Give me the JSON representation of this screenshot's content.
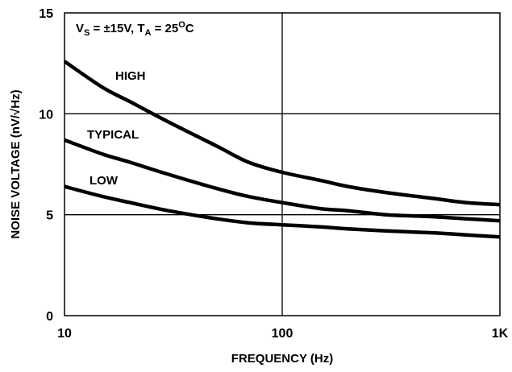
{
  "chart_data": {
    "type": "line",
    "xlabel": "FREQUENCY (Hz)",
    "ylabel": "NOISE VOLTAGE (nV/√Hz)",
    "x_scale": "log",
    "xlim": [
      10,
      1000
    ],
    "ylim": [
      0,
      15
    ],
    "x_ticks": [
      10,
      100,
      1000
    ],
    "x_tick_labels": [
      "10",
      "100",
      "1K"
    ],
    "y_ticks": [
      0,
      5,
      10,
      15
    ],
    "y_tick_labels": [
      "0",
      "5",
      "10",
      "15"
    ],
    "grid": true,
    "annotation": {
      "v_main": "V",
      "v_sub": "S",
      "v_rest": " = ±15V, T",
      "t_sub": "A",
      "t_rest": " = 25",
      "deg": "O",
      "unit": "C"
    },
    "series": [
      {
        "name": "HIGH",
        "x": [
          10,
          15,
          20,
          30,
          50,
          70,
          100,
          150,
          200,
          300,
          500,
          700,
          1000
        ],
        "y": [
          12.6,
          11.3,
          10.6,
          9.6,
          8.4,
          7.6,
          7.1,
          6.7,
          6.4,
          6.1,
          5.8,
          5.6,
          5.5
        ]
      },
      {
        "name": "TYPICAL",
        "x": [
          10,
          15,
          20,
          30,
          50,
          70,
          100,
          150,
          200,
          300,
          500,
          700,
          1000
        ],
        "y": [
          8.7,
          8.0,
          7.6,
          7.0,
          6.3,
          5.9,
          5.6,
          5.3,
          5.2,
          5.0,
          4.9,
          4.8,
          4.7
        ]
      },
      {
        "name": "LOW",
        "x": [
          10,
          15,
          20,
          30,
          50,
          70,
          100,
          150,
          200,
          300,
          500,
          700,
          1000
        ],
        "y": [
          6.4,
          5.9,
          5.6,
          5.2,
          4.8,
          4.6,
          4.5,
          4.4,
          4.3,
          4.2,
          4.1,
          4.0,
          3.9
        ]
      }
    ]
  }
}
